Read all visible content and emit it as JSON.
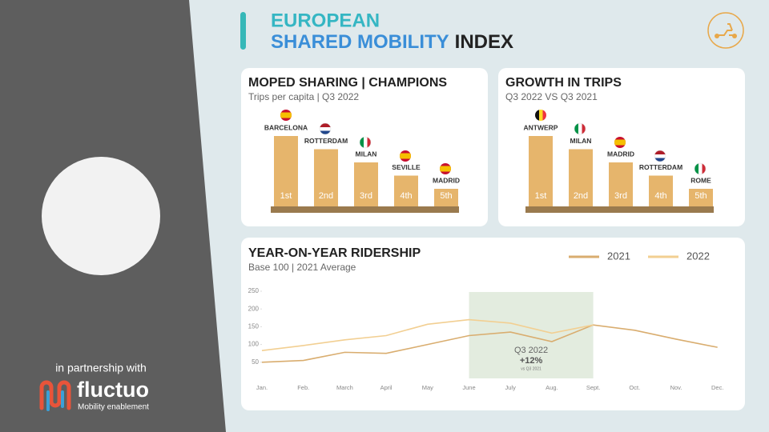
{
  "header": {
    "title_line1": "EUROPEAN",
    "title_highlight": "SHARED MOBILITY",
    "title_rest": "INDEX"
  },
  "sidebar": {
    "partnership": "in partnership with",
    "logo_name": "fluctuo",
    "logo_tagline": "Mobility enablement"
  },
  "podiums": [
    {
      "title": "MOPED SHARING | CHAMPIONS",
      "subtitle": "Trips per capita | Q3 2022",
      "entries": [
        {
          "city": "BARCELONA",
          "rank": "1st"
        },
        {
          "city": "ROTTERDAM",
          "rank": "2nd"
        },
        {
          "city": "MILAN",
          "rank": "3rd"
        },
        {
          "city": "SEVILLE",
          "rank": "4th"
        },
        {
          "city": "MADRID",
          "rank": "5th"
        }
      ]
    },
    {
      "title": "GROWTH IN TRIPS",
      "subtitle": "Q3 2022 VS Q3 2021",
      "entries": [
        {
          "city": "ANTWERP",
          "rank": "1st"
        },
        {
          "city": "MILAN",
          "rank": "2nd"
        },
        {
          "city": "MADRID",
          "rank": "3rd"
        },
        {
          "city": "ROTTERDAM",
          "rank": "4th"
        },
        {
          "city": "ROME",
          "rank": "5th"
        }
      ]
    }
  ],
  "chart_data": {
    "type": "line",
    "title": "YEAR-ON-YEAR RIDERSHIP",
    "subtitle": "Base 100 | 2021 Average",
    "categories": [
      "Jan.",
      "Feb.",
      "March",
      "April",
      "May",
      "June",
      "July",
      "Aug.",
      "Sept.",
      "Oct.",
      "Nov.",
      "Dec."
    ],
    "series": [
      {
        "name": "2021",
        "color": "#d9ad6f",
        "values": [
          50,
          55,
          78,
          75,
          100,
          125,
          135,
          108,
          155,
          140,
          115,
          92
        ]
      },
      {
        "name": "2022",
        "color": "#f2cf92",
        "values": [
          83,
          97,
          113,
          125,
          157,
          170,
          160,
          132,
          155,
          null,
          null,
          null
        ]
      }
    ],
    "ylim": [
      0,
      250
    ],
    "yticks": [
      50,
      100,
      150,
      200,
      250
    ],
    "grid": false,
    "annotation": {
      "start": "June",
      "end": "Sept.",
      "label": "Q3 2022",
      "value_label": "+12%",
      "note": "vs Q3 2021"
    }
  }
}
